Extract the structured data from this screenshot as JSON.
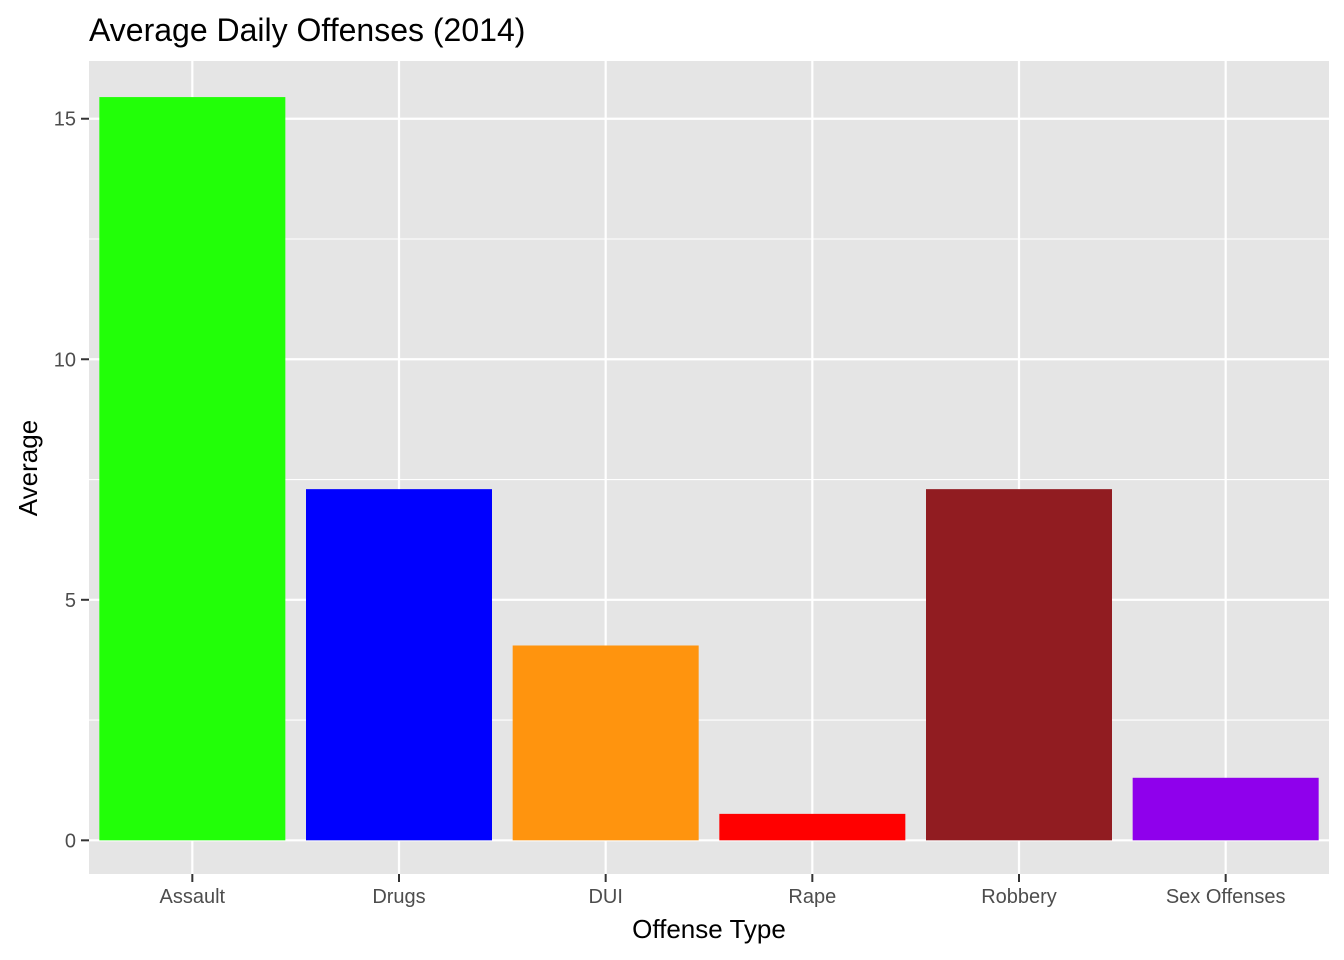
{
  "chart_data": {
    "type": "bar",
    "title": "Average Daily Offenses (2014)",
    "xlabel": "Offense Type",
    "ylabel": "Average",
    "categories": [
      "Assault",
      "Drugs",
      "DUI",
      "Rape",
      "Robbery",
      "Sex Offenses"
    ],
    "values": [
      15.45,
      7.3,
      4.05,
      0.55,
      7.3,
      1.3
    ],
    "colors": [
      "#22ff08",
      "#0000ff",
      "#ff940e",
      "#ff0000",
      "#911c21",
      "#8f00ec"
    ],
    "ylim": [
      -0.7,
      16.2
    ],
    "yticks": [
      0,
      5,
      10,
      15
    ],
    "grid": true,
    "legend": "none",
    "panel_color": "#e5e5e5",
    "grid_color": "#ffffff"
  }
}
